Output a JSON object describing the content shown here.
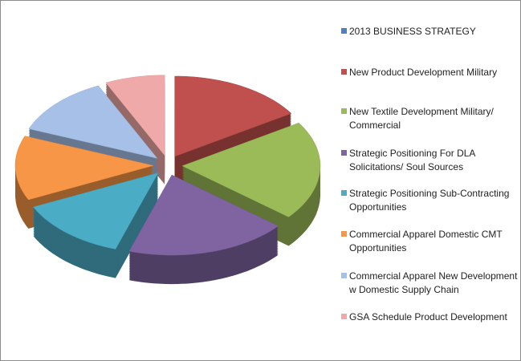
{
  "chart_data": {
    "type": "pie",
    "style": "3d-exploded",
    "title": "2013 BUSINESS STRATEGY",
    "legend_position": "right",
    "legend": [
      {
        "label": "2013 BUSINESS STRATEGY",
        "color": "#4f81bd"
      },
      {
        "label": "New Product Development Military",
        "color": "#c0504d"
      },
      {
        "label": "New Textile Development Military/ Commercial",
        "color": "#9bbb59"
      },
      {
        "label": "Strategic Positioning For DLA Solicitations/ Soul Sources",
        "color": "#8064a2"
      },
      {
        "label": "Strategic Positioning Sub-Contracting Opportunities",
        "color": "#4bacc6"
      },
      {
        "label": "Commercial Apparel Domestic CMT Opportunities",
        "color": "#f79646"
      },
      {
        "label": "Commercial Apparel New Development w Domestic Supply Chain",
        "color": "#a7c0e8"
      },
      {
        "label": "GSA Schedule Product Development",
        "color": "#efa9a8"
      }
    ],
    "slices": [
      {
        "label": "New Product Development Military",
        "value": 16,
        "color": "#c0504d"
      },
      {
        "label": "New Textile Development Military/ Commercial",
        "value": 20,
        "color": "#9bbb59"
      },
      {
        "label": "Strategic Positioning For DLA Solicitations/ Soul Sources",
        "value": 19,
        "color": "#8064a2"
      },
      {
        "label": "Strategic Positioning Sub-Contracting Opportunities",
        "value": 13,
        "color": "#4bacc6"
      },
      {
        "label": "Commercial Apparel Domestic CMT Opportunities",
        "value": 13,
        "color": "#f79646"
      },
      {
        "label": "Commercial Apparel New Development w Domestic Supply Chain",
        "value": 12,
        "color": "#a7c0e8"
      },
      {
        "label": "GSA Schedule Product Development",
        "value": 7,
        "color": "#efa9a8"
      }
    ]
  }
}
